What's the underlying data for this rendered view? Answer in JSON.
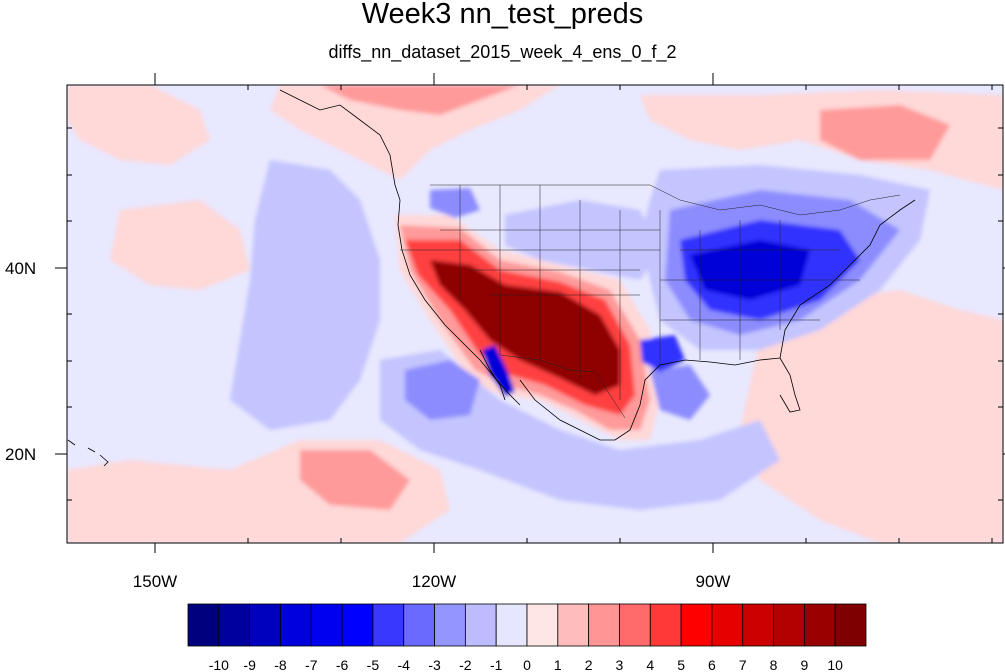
{
  "title": "Week3 nn_test_preds",
  "subtitle": "diffs_nn_dataset_2015_week_4_ens_0_f_2",
  "axes": {
    "lon_labels": [
      "150W",
      "120W",
      "90W"
    ],
    "lat_labels": [
      "40N",
      "20N"
    ]
  },
  "colorbar": {
    "labels": [
      "-10",
      "-9",
      "-8",
      "-7",
      "-6",
      "-5",
      "-4",
      "-3",
      "-2",
      "-1",
      "0",
      "1",
      "2",
      "3",
      "4",
      "5",
      "6",
      "7",
      "8",
      "9",
      "10"
    ],
    "colors": [
      "#00007f",
      "#00009f",
      "#0000bf",
      "#0000df",
      "#0000f0",
      "#0000ff",
      "#3838ff",
      "#6a6aff",
      "#9595ff",
      "#bcbcff",
      "#e6e6ff",
      "#ffe6e6",
      "#ffbcbc",
      "#ff9595",
      "#ff6a6a",
      "#ff3838",
      "#ff0000",
      "#e60000",
      "#cc0000",
      "#b30000",
      "#990000",
      "#7f0000"
    ]
  },
  "palette": {
    "ocean_base": "#e8e8ff",
    "light_red": "#ffd8d8",
    "mid_red": "#ff9a9a",
    "strong_red": "#ff4040",
    "dark_red": "#8f0000",
    "light_blue": "#c4c4ff",
    "mid_blue": "#8c8cff",
    "strong_blue": "#3030ff",
    "dark_blue": "#0000d8"
  }
}
